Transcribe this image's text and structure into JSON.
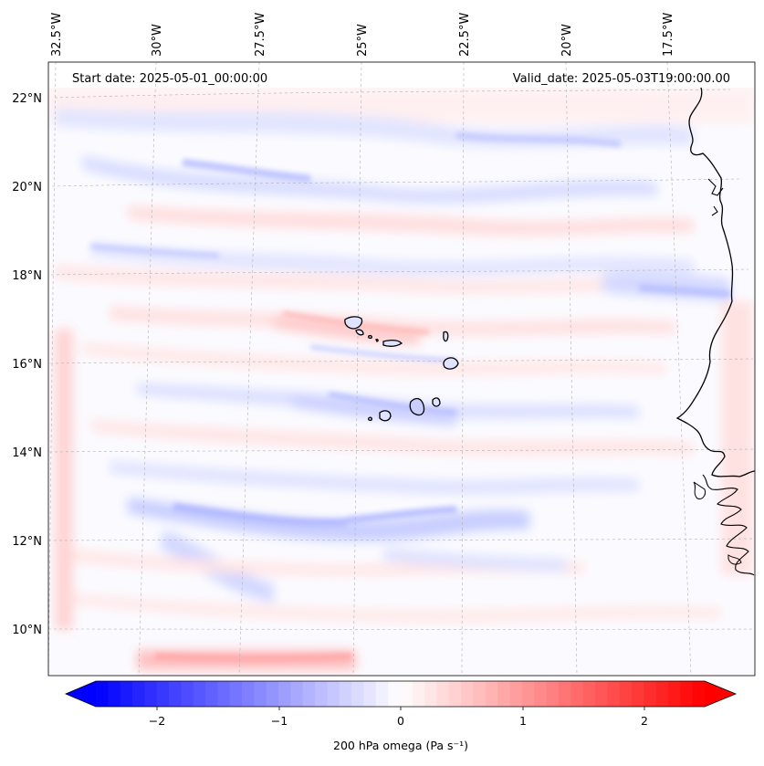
{
  "map": {
    "start_label": "Start date: 2025-05-01_00:00:00",
    "valid_label": "Valid_date: 2025-05-03T19:00:00.00",
    "lat_labels": [
      "22°N",
      "20°N",
      "18°N",
      "16°N",
      "14°N",
      "12°N",
      "10°N"
    ],
    "lon_labels": [
      "32.5°W",
      "30°W",
      "27.5°W",
      "25°W",
      "22.5°W",
      "20°W",
      "17.5°W"
    ],
    "lat_values": [
      22,
      20,
      18,
      16,
      14,
      12,
      10
    ],
    "lon_values": [
      -32.5,
      -30,
      -27.5,
      -25,
      -22.5,
      -20,
      -17.5
    ],
    "extent": {
      "lon_min": -33.5,
      "lon_max": -16.2,
      "lat_min": 8.9,
      "lat_max": 22.8
    },
    "colors": {
      "negative": "#0000ff",
      "neutral": "#ffffff",
      "positive": "#ff0000",
      "coastline": "#000000",
      "gridline": "#b0b0b0"
    }
  },
  "colorbar": {
    "label": "200 hPa omega (Pa s⁻¹)",
    "ticks": [
      "−2",
      "−1",
      "0",
      "1",
      "2"
    ],
    "tick_values": [
      -2,
      -1,
      0,
      1,
      2
    ],
    "range": [
      -2.6,
      2.6
    ]
  }
}
